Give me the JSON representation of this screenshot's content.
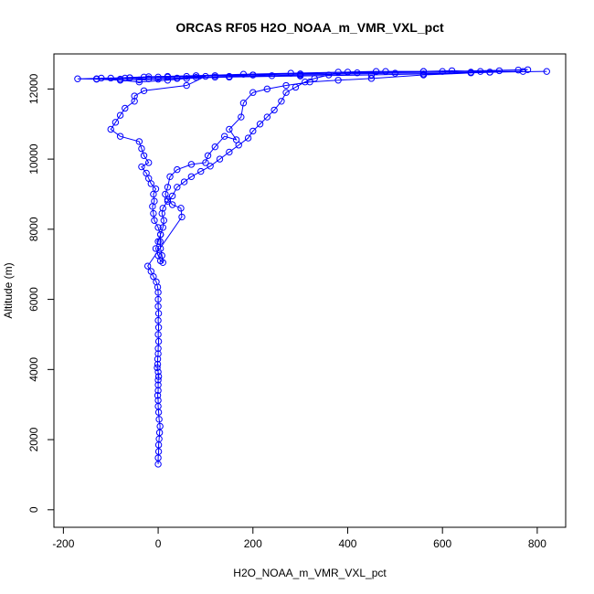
{
  "chart_data": {
    "type": "scatter",
    "title": "ORCAS RF05 H2O_NOAA_m_VMR_VXL_pct",
    "xlabel": "H2O_NOAA_m_VMR_VXL_pct",
    "ylabel": "Altitude (m)",
    "xlim": [
      -220,
      860
    ],
    "ylim": [
      -500,
      13000
    ],
    "xticks": [
      -200,
      0,
      200,
      400,
      600,
      800
    ],
    "yticks": [
      0,
      2000,
      4000,
      6000,
      8000,
      10000,
      12000
    ],
    "grid": false,
    "legend": "none",
    "color": "#0000ff",
    "marker": "open-circle",
    "connected": true,
    "series": [
      {
        "points": [
          [
            0,
            1300
          ],
          [
            0,
            1480
          ],
          [
            1,
            1660
          ],
          [
            1,
            1850
          ],
          [
            2,
            2020
          ],
          [
            3,
            2200
          ],
          [
            4,
            2380
          ],
          [
            2,
            2580
          ],
          [
            1,
            2780
          ],
          [
            0,
            2950
          ],
          [
            0,
            3120
          ],
          [
            -1,
            3260
          ],
          [
            0,
            3400
          ],
          [
            0,
            3560
          ],
          [
            0,
            3700
          ],
          [
            1,
            3800
          ],
          [
            0,
            3930
          ],
          [
            -2,
            4050
          ],
          [
            -1,
            4150
          ],
          [
            -1,
            4300
          ],
          [
            0,
            4450
          ],
          [
            0,
            4600
          ],
          [
            1,
            4800
          ],
          [
            0,
            5000
          ],
          [
            1,
            5200
          ],
          [
            0,
            5400
          ],
          [
            1,
            5600
          ],
          [
            0,
            5800
          ],
          [
            0,
            6000
          ],
          [
            0,
            6200
          ],
          [
            -1,
            6350
          ],
          [
            -4,
            6500
          ],
          [
            -10,
            6650
          ],
          [
            -15,
            6800
          ],
          [
            -22,
            6950
          ],
          [
            50,
            8350
          ],
          [
            48,
            8600
          ],
          [
            30,
            8700
          ],
          [
            20,
            8850
          ],
          [
            15,
            9000
          ],
          [
            20,
            9200
          ],
          [
            25,
            9500
          ],
          [
            40,
            9700
          ],
          [
            70,
            9850
          ],
          [
            100,
            9900
          ],
          [
            105,
            10100
          ],
          [
            120,
            10350
          ],
          [
            140,
            10650
          ],
          [
            165,
            10550
          ],
          [
            150,
            10850
          ],
          [
            175,
            11200
          ],
          [
            180,
            11600
          ],
          [
            200,
            11900
          ],
          [
            230,
            12000
          ],
          [
            270,
            12100
          ],
          [
            320,
            12200
          ],
          [
            380,
            12250
          ],
          [
            450,
            12300
          ],
          [
            560,
            12400
          ],
          [
            700,
            12480
          ],
          [
            820,
            12500
          ],
          [
            700,
            12480
          ],
          [
            500,
            12450
          ],
          [
            300,
            12400
          ],
          [
            150,
            12350
          ],
          [
            60,
            12300
          ],
          [
            20,
            12250
          ],
          [
            -40,
            12200
          ],
          [
            -80,
            12250
          ],
          [
            -130,
            12280
          ],
          [
            -170,
            12290
          ],
          [
            -100,
            12310
          ],
          [
            -20,
            12350
          ],
          [
            80,
            12380
          ],
          [
            180,
            12420
          ],
          [
            280,
            12450
          ],
          [
            380,
            12480
          ],
          [
            460,
            12500
          ],
          [
            560,
            12500
          ],
          [
            660,
            12480
          ],
          [
            770,
            12500
          ],
          [
            660,
            12460
          ],
          [
            560,
            12430
          ],
          [
            450,
            12400
          ],
          [
            300,
            12370
          ],
          [
            150,
            12340
          ],
          [
            40,
            12310
          ],
          [
            -20,
            12290
          ],
          [
            -70,
            12310
          ],
          [
            -30,
            12340
          ],
          [
            20,
            12360
          ],
          [
            80,
            12330
          ],
          [
            150,
            12360
          ],
          [
            200,
            12400
          ],
          [
            240,
            12380
          ],
          [
            120,
            12340
          ],
          [
            40,
            12300
          ],
          [
            0,
            12280
          ],
          [
            -40,
            12260
          ],
          [
            -80,
            12280
          ],
          [
            -130,
            12290
          ],
          [
            -60,
            12320
          ],
          [
            20,
            12340
          ],
          [
            100,
            12360
          ],
          [
            60,
            12100
          ],
          [
            -30,
            11950
          ],
          [
            -50,
            11800
          ],
          [
            -50,
            11650
          ],
          [
            -70,
            11450
          ],
          [
            -80,
            11250
          ],
          [
            -90,
            11050
          ],
          [
            -100,
            10850
          ],
          [
            -80,
            10650
          ],
          [
            -40,
            10500
          ],
          [
            -35,
            10300
          ],
          [
            -30,
            10100
          ],
          [
            -20,
            9900
          ],
          [
            -35,
            9780
          ],
          [
            -25,
            9600
          ],
          [
            -20,
            9450
          ],
          [
            -15,
            9300
          ],
          [
            -5,
            9150
          ],
          [
            -10,
            9000
          ],
          [
            -8,
            8800
          ],
          [
            -12,
            8650
          ],
          [
            -10,
            8450
          ],
          [
            -8,
            8250
          ],
          [
            0,
            8050
          ],
          [
            5,
            7850
          ],
          [
            0,
            7650
          ],
          [
            -5,
            7450
          ],
          [
            0,
            7250
          ],
          [
            5,
            7100
          ],
          [
            10,
            7050
          ],
          [
            8,
            7250
          ],
          [
            5,
            7450
          ],
          [
            4,
            7650
          ],
          [
            5,
            7850
          ],
          [
            10,
            8050
          ],
          [
            12,
            8250
          ],
          [
            8,
            8450
          ],
          [
            10,
            8600
          ],
          [
            20,
            8800
          ],
          [
            30,
            8950
          ],
          [
            40,
            9200
          ],
          [
            55,
            9350
          ],
          [
            70,
            9500
          ],
          [
            90,
            9650
          ],
          [
            110,
            9800
          ],
          [
            130,
            10000
          ],
          [
            150,
            10200
          ],
          [
            170,
            10400
          ],
          [
            190,
            10600
          ],
          [
            200,
            10800
          ],
          [
            215,
            11000
          ],
          [
            230,
            11200
          ],
          [
            245,
            11400
          ],
          [
            260,
            11650
          ],
          [
            270,
            11900
          ],
          [
            290,
            12050
          ],
          [
            310,
            12200
          ],
          [
            330,
            12300
          ],
          [
            360,
            12400
          ],
          [
            400,
            12480
          ],
          [
            480,
            12500
          ],
          [
            560,
            12500
          ],
          [
            620,
            12520
          ],
          [
            680,
            12500
          ],
          [
            720,
            12520
          ],
          [
            760,
            12540
          ],
          [
            780,
            12550
          ],
          [
            600,
            12500
          ],
          [
            420,
            12460
          ],
          [
            300,
            12430
          ],
          [
            200,
            12400
          ],
          [
            120,
            12380
          ],
          [
            60,
            12360
          ],
          [
            0,
            12340
          ],
          [
            -60,
            12320
          ],
          [
            -120,
            12310
          ]
        ]
      }
    ]
  }
}
